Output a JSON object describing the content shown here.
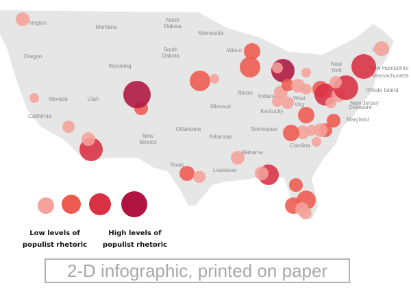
{
  "map": {
    "labels": [
      "hington",
      "Montana",
      "North",
      "Dakota",
      "Minnesota",
      "South",
      "Dakota",
      "Oregon",
      "Wyoming",
      "Wisco",
      "Nevada",
      "Utah",
      "Illinois",
      "Indiana",
      "Missouri",
      "Kentucky",
      "California",
      "Oklahoma",
      "Arkansas",
      "Tennessee",
      "New",
      "Mexico",
      "Texas",
      "Louisiana",
      "Alabama",
      "New",
      "York",
      "Vern",
      "New Hampshire",
      "Massachusetts",
      "Rhode Island",
      "New Jersey",
      "Delaware",
      "Maryland",
      "West",
      "Virg",
      "Carolina"
    ],
    "country_label": [
      "Unite",
      "States"
    ]
  },
  "legend": {
    "low_label": [
      "Low levels of",
      "populist rhetoric"
    ],
    "high_label": [
      "High levels of",
      "populist rhetoric"
    ]
  },
  "caption": "2-D infographic, printed on paper"
}
